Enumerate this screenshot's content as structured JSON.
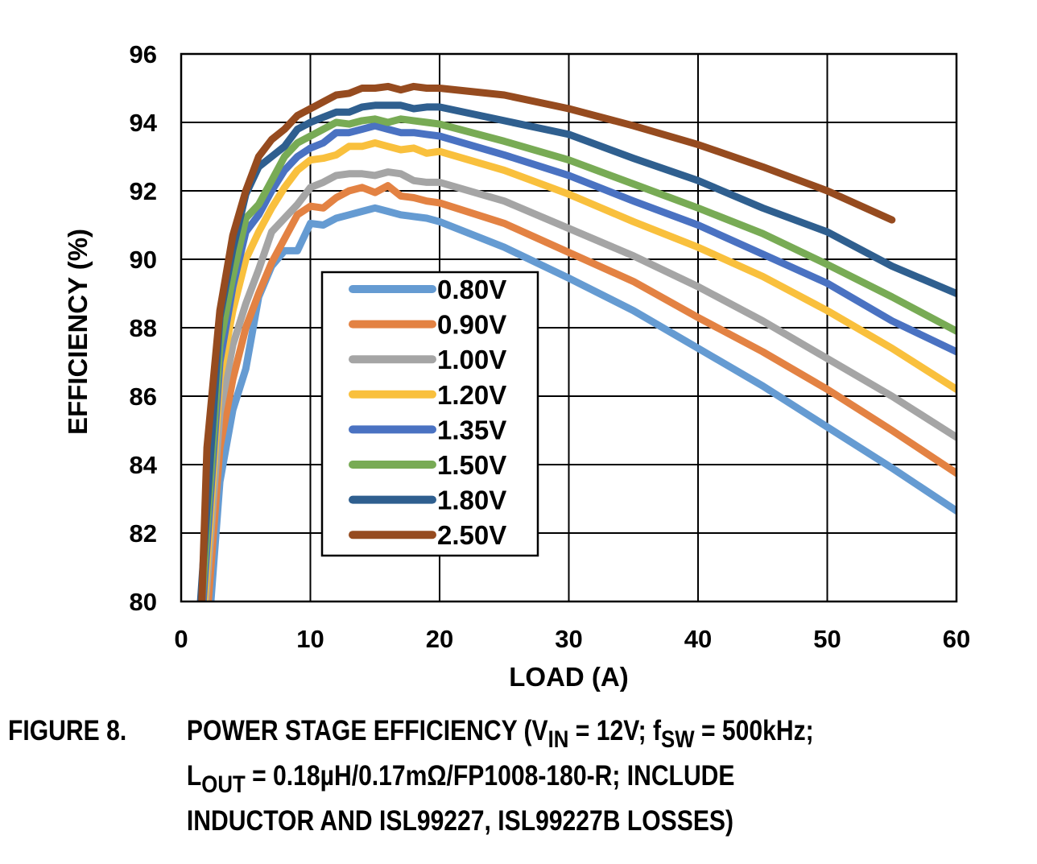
{
  "chart_data": {
    "type": "line",
    "title": "",
    "xlabel": "LOAD (A)",
    "ylabel": "EFFICIENCY (%)",
    "xlim": [
      0,
      60
    ],
    "ylim": [
      80,
      96
    ],
    "xticks": [
      0,
      10,
      20,
      30,
      40,
      50,
      60
    ],
    "yticks": [
      80,
      82,
      84,
      86,
      88,
      90,
      92,
      94,
      96
    ],
    "xtick_labels": [
      "0",
      "10",
      "20",
      "30",
      "40",
      "50",
      "60"
    ],
    "ytick_labels": [
      "80",
      "82",
      "84",
      "86",
      "88",
      "90",
      "92",
      "94",
      "96"
    ],
    "grid": true,
    "legend_position": "center-left",
    "series": [
      {
        "name": "0.80V",
        "color": "#659BD2",
        "x": [
          2.3,
          3,
          4,
          5,
          6,
          7,
          8,
          9,
          10,
          11,
          12,
          13,
          14,
          15,
          16,
          17,
          18,
          19,
          20,
          25,
          30,
          35,
          40,
          45,
          50,
          55,
          60
        ],
        "y": [
          80,
          83.5,
          85.6,
          86.8,
          88.9,
          89.8,
          90.25,
          90.25,
          91.05,
          91.0,
          91.2,
          91.3,
          91.4,
          91.5,
          91.4,
          91.3,
          91.25,
          91.2,
          91.1,
          90.35,
          89.45,
          88.5,
          87.4,
          86.3,
          85.1,
          83.9,
          82.65
        ]
      },
      {
        "name": "0.90V",
        "color": "#E38243",
        "x": [
          2.1,
          3,
          4,
          5,
          6,
          7,
          8,
          9,
          10,
          11,
          12,
          13,
          14,
          15,
          16,
          17,
          18,
          19,
          20,
          25,
          30,
          35,
          40,
          45,
          50,
          55,
          60
        ],
        "y": [
          80,
          84.5,
          86.5,
          88.0,
          89.0,
          89.9,
          90.6,
          91.3,
          91.55,
          91.5,
          91.8,
          92.0,
          92.1,
          91.95,
          92.15,
          91.85,
          91.8,
          91.7,
          91.65,
          91.05,
          90.2,
          89.35,
          88.3,
          87.3,
          86.2,
          85.0,
          83.75
        ]
      },
      {
        "name": "1.00V",
        "color": "#A5A5A5",
        "x": [
          1.9,
          3,
          4,
          5,
          6,
          7,
          8,
          9,
          10,
          11,
          12,
          13,
          14,
          15,
          16,
          17,
          18,
          19,
          20,
          25,
          30,
          35,
          40,
          45,
          50,
          55,
          60
        ],
        "y": [
          80,
          85.5,
          87.5,
          88.7,
          89.7,
          90.8,
          91.2,
          91.6,
          92.1,
          92.25,
          92.45,
          92.5,
          92.5,
          92.45,
          92.55,
          92.5,
          92.3,
          92.25,
          92.25,
          91.7,
          90.9,
          90.1,
          89.2,
          88.2,
          87.1,
          86.0,
          84.8
        ]
      },
      {
        "name": "1.20V",
        "color": "#F9C03D",
        "x": [
          1.8,
          3,
          4,
          5,
          6,
          7,
          8,
          9,
          10,
          11,
          12,
          13,
          14,
          15,
          16,
          17,
          18,
          19,
          20,
          25,
          30,
          35,
          40,
          45,
          50,
          55,
          60
        ],
        "y": [
          80,
          86.5,
          88.5,
          90.0,
          90.8,
          91.5,
          92.1,
          92.6,
          92.9,
          92.95,
          93.05,
          93.3,
          93.3,
          93.4,
          93.3,
          93.2,
          93.25,
          93.1,
          93.15,
          92.6,
          91.9,
          91.1,
          90.35,
          89.5,
          88.5,
          87.4,
          86.2
        ]
      },
      {
        "name": "1.35V",
        "color": "#4A72C2",
        "x": [
          1.7,
          3,
          4,
          5,
          6,
          7,
          8,
          9,
          10,
          11,
          12,
          13,
          14,
          15,
          16,
          17,
          18,
          19,
          20,
          25,
          30,
          35,
          40,
          45,
          50,
          55,
          60
        ],
        "y": [
          80,
          87.0,
          89.2,
          90.8,
          91.3,
          92.0,
          92.6,
          93.0,
          93.25,
          93.4,
          93.7,
          93.7,
          93.8,
          93.9,
          93.8,
          93.7,
          93.7,
          93.65,
          93.6,
          93.05,
          92.45,
          91.7,
          91.0,
          90.15,
          89.3,
          88.2,
          87.3
        ]
      },
      {
        "name": "1.50V",
        "color": "#78AB55",
        "x": [
          1.6,
          3,
          4,
          5,
          6,
          7,
          8,
          9,
          10,
          11,
          12,
          13,
          14,
          15,
          16,
          17,
          18,
          19,
          20,
          25,
          30,
          35,
          40,
          45,
          50,
          55,
          60
        ],
        "y": [
          80,
          87.5,
          89.5,
          91.2,
          91.6,
          92.3,
          93.0,
          93.4,
          93.6,
          93.8,
          94.0,
          93.95,
          94.05,
          94.1,
          94.0,
          94.1,
          94.05,
          94.0,
          93.95,
          93.45,
          92.9,
          92.2,
          91.5,
          90.75,
          89.85,
          88.9,
          87.9
        ]
      },
      {
        "name": "1.80V",
        "color": "#2F5F8F",
        "x": [
          1.5,
          3,
          4,
          5,
          6,
          7,
          8,
          9,
          10,
          11,
          12,
          13,
          14,
          15,
          16,
          17,
          18,
          19,
          20,
          25,
          30,
          35,
          40,
          45,
          50,
          55,
          60
        ],
        "y": [
          80,
          88.3,
          90.3,
          91.9,
          92.7,
          93.0,
          93.3,
          93.8,
          94.0,
          94.15,
          94.3,
          94.3,
          94.45,
          94.5,
          94.5,
          94.5,
          94.4,
          94.45,
          94.45,
          94.05,
          93.65,
          92.95,
          92.3,
          91.5,
          90.8,
          89.8,
          89.0
        ]
      },
      {
        "name": "2.50V",
        "color": "#964B1F",
        "x": [
          1.6,
          2,
          3,
          4,
          5,
          6,
          7,
          8,
          9,
          10,
          11,
          12,
          13,
          14,
          15,
          16,
          17,
          18,
          19,
          20,
          25,
          30,
          35,
          40,
          45,
          50,
          55
        ],
        "y": [
          80,
          84.5,
          88.5,
          90.7,
          92.0,
          93.0,
          93.5,
          93.8,
          94.2,
          94.4,
          94.6,
          94.8,
          94.85,
          95.0,
          95.0,
          95.05,
          94.95,
          95.05,
          95.0,
          95.0,
          94.8,
          94.4,
          93.9,
          93.35,
          92.7,
          92.0,
          91.15
        ]
      }
    ]
  },
  "caption": {
    "label": "FIGURE 8.",
    "line1_a": "POWER STAGE EFFICIENCY (V",
    "line1_sub1": "IN",
    "line1_b": " = 12V; f",
    "line1_sub2": "SW",
    "line1_c": " = 500kHz;",
    "line2_a": "L",
    "line2_sub": "OUT",
    "line2_b": " = 0.18µH/0.17mΩ/FP1008-180-R; INCLUDE",
    "line3": "INDUCTOR AND ISL99227, ISL99227B LOSSES)"
  }
}
